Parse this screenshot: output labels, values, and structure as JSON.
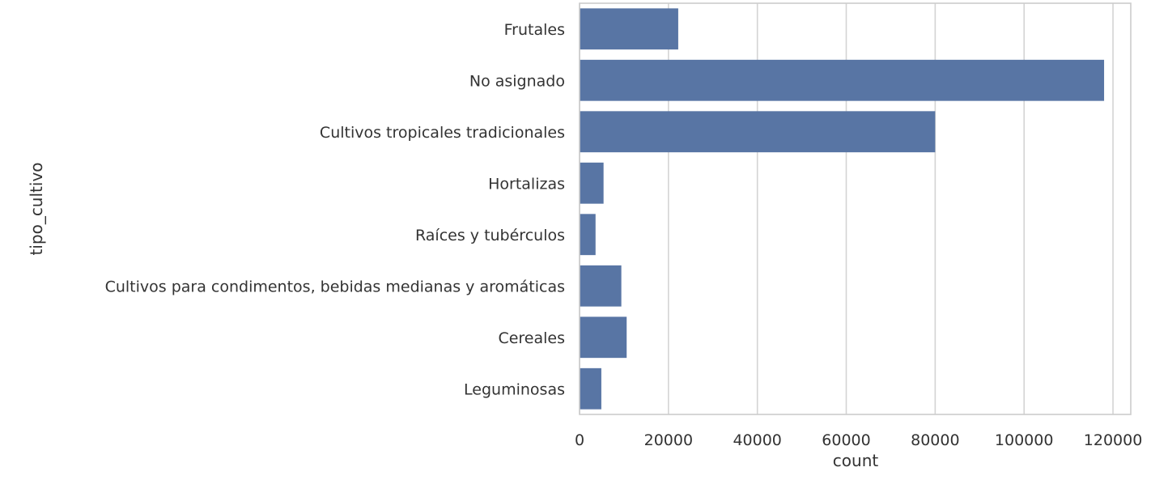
{
  "chart_data": {
    "type": "bar",
    "orientation": "horizontal",
    "categories": [
      "Frutales",
      "No asignado",
      "Cultivos tropicales tradicionales",
      "Hortalizas",
      "Raíces y tubérculos",
      "Cultivos para condimentos, bebidas medianas y aromáticas",
      "Cereales",
      "Leguminosas"
    ],
    "values": [
      22200,
      118000,
      80000,
      5400,
      3600,
      9400,
      10600,
      4900
    ],
    "xlabel": "count",
    "ylabel": "tipo_cultivo",
    "xlim": [
      0,
      124000
    ],
    "xticks": [
      0,
      20000,
      40000,
      60000,
      80000,
      100000,
      120000
    ],
    "xtick_labels": [
      "0",
      "20000",
      "40000",
      "60000",
      "80000",
      "100000",
      "120000"
    ],
    "grid": "vertical",
    "bar_color": "#5875a4"
  }
}
